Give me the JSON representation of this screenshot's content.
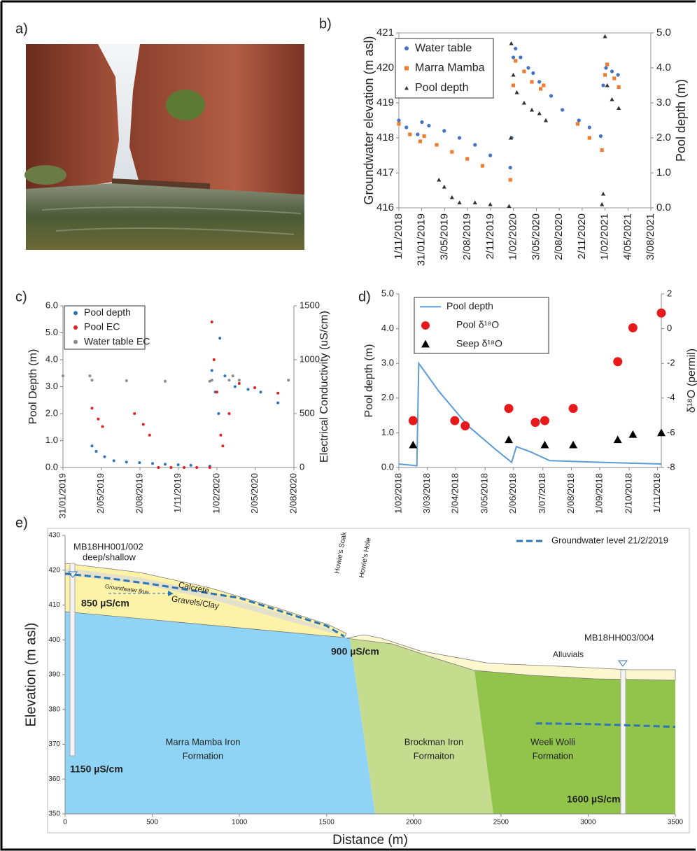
{
  "panel_labels": [
    "a)",
    "b)",
    "c)",
    "d)",
    "e)"
  ],
  "chart_data": [
    {
      "type": "scatter",
      "ylabel": "Groundwater elevation (m asl)",
      "y2label": "Pool depth (m)",
      "xlim": [
        "2018-11-01",
        "2021-08-03"
      ],
      "xticks": [
        {
          "value": "2018-11-01",
          "label": "1/11/2018"
        },
        {
          "value": "2019-01-31",
          "label": "31/01/2019"
        },
        {
          "value": "2019-05-03",
          "label": "3/05/2019"
        },
        {
          "value": "2019-08-02",
          "label": "2/08/2019"
        },
        {
          "value": "2019-11-02",
          "label": "2/11/2019"
        },
        {
          "value": "2020-02-01",
          "label": "1/02/2020"
        },
        {
          "value": "2020-05-03",
          "label": "3/05/2020"
        },
        {
          "value": "2020-08-02",
          "label": "2/08/2020"
        },
        {
          "value": "2020-11-02",
          "label": "2/11/2020"
        },
        {
          "value": "2021-02-01",
          "label": "1/02/2021"
        },
        {
          "value": "2021-05-04",
          "label": "4/05/2021"
        },
        {
          "value": "2021-08-03",
          "label": "3/08/2021"
        }
      ],
      "ylim": [
        416,
        421
      ],
      "yticks": [
        416,
        417,
        418,
        419,
        420,
        421
      ],
      "y2lim": [
        0,
        5
      ],
      "y2ticks": [
        {
          "value": 0,
          "label": "0.0"
        },
        {
          "value": 1,
          "label": "1.0"
        },
        {
          "value": 2,
          "label": "2.0"
        },
        {
          "value": 3,
          "label": "3.0"
        },
        {
          "value": 4,
          "label": "4.0"
        },
        {
          "value": 5,
          "label": "5.0"
        }
      ],
      "legend": "upper left",
      "series": [
        {
          "name": "Water table",
          "color": "#4472c4",
          "marker": "circle",
          "x": [
            "2018-11-01",
            "2018-12-01",
            "2019-01-15",
            "2019-02-01",
            "2019-03-01",
            "2019-05-01",
            "2019-07-01",
            "2019-09-01",
            "2019-11-01",
            "2020-01-20",
            "2020-01-25",
            "2020-02-01",
            "2020-02-10",
            "2020-03-01",
            "2020-04-01",
            "2020-04-20",
            "2020-05-15",
            "2020-07-01",
            "2020-08-15",
            "2020-10-20",
            "2020-12-01",
            "2021-01-15",
            "2021-01-25",
            "2021-02-05",
            "2021-03-01",
            "2021-03-25"
          ],
          "values": [
            418.5,
            418.3,
            418.1,
            418.45,
            418.35,
            418.2,
            418.0,
            417.8,
            417.5,
            417.15,
            418.0,
            420.3,
            420.55,
            420.3,
            420.0,
            419.85,
            419.6,
            419.2,
            418.8,
            418.5,
            418.3,
            418.05,
            419.5,
            420.0,
            419.9,
            419.8
          ]
        },
        {
          "name": "Marra Mamba",
          "color": "#ed7d31",
          "marker": "square",
          "x": [
            "2018-11-01",
            "2018-12-15",
            "2019-01-25",
            "2019-02-10",
            "2019-04-01",
            "2019-06-01",
            "2019-08-01",
            "2019-10-01",
            "2020-01-20",
            "2020-02-01",
            "2020-02-10",
            "2020-03-15",
            "2020-04-15",
            "2020-05-20",
            "2020-06-01",
            "2020-10-15",
            "2020-12-01",
            "2021-01-20",
            "2021-02-01",
            "2021-02-10",
            "2021-03-10",
            "2021-03-28"
          ],
          "values": [
            418.4,
            418.1,
            417.9,
            418.05,
            417.8,
            417.6,
            417.4,
            417.2,
            416.8,
            419.5,
            420.2,
            419.9,
            419.6,
            419.4,
            419.5,
            418.4,
            418.0,
            417.65,
            419.8,
            420.1,
            419.7,
            419.45
          ]
        },
        {
          "name": "Pool depth",
          "color": "#333333",
          "marker": "triangle",
          "axis": "y2",
          "x": [
            "2019-04-10",
            "2019-05-01",
            "2019-06-01",
            "2019-07-01",
            "2019-09-01",
            "2019-11-01",
            "2020-01-15",
            "2020-01-22",
            "2020-01-24",
            "2020-02-01",
            "2020-02-15",
            "2020-03-15",
            "2020-04-15",
            "2020-05-15",
            "2020-06-10",
            "2021-01-20",
            "2021-01-25",
            "2021-02-01",
            "2021-02-10",
            "2021-03-01",
            "2021-03-28"
          ],
          "values": [
            0.8,
            0.6,
            0.3,
            0.15,
            0.15,
            0.1,
            0.05,
            2.0,
            4.7,
            3.8,
            3.3,
            3.0,
            2.8,
            2.7,
            2.5,
            0.1,
            0.4,
            4.9,
            3.5,
            3.1,
            2.85
          ]
        }
      ]
    },
    {
      "type": "scatter",
      "ylabel": "Pool Depth (m)",
      "y2label": "Electrical Conductivity (uS/cm)",
      "xlim": [
        "2019-01-31",
        "2020-08-02"
      ],
      "xticks": [
        {
          "value": "2019-01-31",
          "label": "31/01/2019"
        },
        {
          "value": "2019-05-02",
          "label": "2/05/2019"
        },
        {
          "value": "2019-08-02",
          "label": "2/08/2019"
        },
        {
          "value": "2019-11-01",
          "label": "1/11/2019"
        },
        {
          "value": "2020-02-01",
          "label": "1/02/2020"
        },
        {
          "value": "2020-05-02",
          "label": "2/05/2020"
        },
        {
          "value": "2020-08-02",
          "label": "2/08/2020"
        }
      ],
      "ylim": [
        0,
        6
      ],
      "yticks": [
        {
          "value": 0,
          "label": "0.0"
        },
        {
          "value": 1,
          "label": "1.0"
        },
        {
          "value": 2,
          "label": "2.0"
        },
        {
          "value": 3,
          "label": "3.0"
        },
        {
          "value": 4,
          "label": "4.0"
        },
        {
          "value": 5,
          "label": "5.0"
        },
        {
          "value": 6,
          "label": "6.0"
        }
      ],
      "y2lim": [
        0,
        1500
      ],
      "y2ticks": [
        0,
        500,
        1000,
        1500
      ],
      "legend": "upper left",
      "series": [
        {
          "name": "Pool depth",
          "color": "#2e75b6",
          "marker": "circle",
          "x": [
            "2019-04-10",
            "2019-04-20",
            "2019-05-10",
            "2019-06-01",
            "2019-07-01",
            "2019-08-01",
            "2019-09-01",
            "2019-10-01",
            "2019-11-01",
            "2019-12-01",
            "2020-01-15",
            "2020-01-20",
            "2020-01-28",
            "2020-02-05",
            "2020-02-08",
            "2020-02-20",
            "2020-03-15",
            "2020-04-15",
            "2020-05-15",
            "2020-06-25"
          ],
          "values": [
            0.8,
            0.6,
            0.4,
            0.25,
            0.2,
            0.18,
            0.15,
            0.12,
            0.1,
            0.08,
            0.05,
            3.6,
            2.8,
            2.0,
            4.8,
            3.4,
            3.0,
            2.9,
            2.8,
            2.4
          ]
        },
        {
          "name": "Pool EC",
          "color": "#e02020",
          "marker": "circle",
          "axis": "y2",
          "x": [
            "2019-04-10",
            "2019-04-25",
            "2019-05-05",
            "2019-07-20",
            "2019-08-10",
            "2019-08-25",
            "2019-09-15",
            "2019-10-15",
            "2019-11-15",
            "2019-12-15",
            "2020-01-15",
            "2020-01-20",
            "2020-01-25",
            "2020-02-01",
            "2020-02-10",
            "2020-02-15",
            "2020-03-01",
            "2020-03-25",
            "2020-05-01",
            "2020-06-25"
          ],
          "values": [
            550,
            450,
            380,
            500,
            400,
            300,
            0,
            0,
            0,
            0,
            0,
            1350,
            1000,
            700,
            300,
            200,
            500,
            780,
            740,
            690
          ]
        },
        {
          "name": "Water table EC",
          "color": "#8c8c8c",
          "marker": "circle",
          "axis": "y2",
          "x": [
            "2019-01-31",
            "2019-04-05",
            "2019-04-10",
            "2019-07-01",
            "2019-10-01",
            "2020-01-15",
            "2020-01-20",
            "2020-03-01",
            "2020-03-10",
            "2020-03-25",
            "2020-07-20"
          ],
          "values": [
            850,
            850,
            810,
            805,
            800,
            800,
            810,
            810,
            850,
            810,
            810
          ]
        }
      ]
    },
    {
      "type": "combo",
      "ylabel": "Pool depth (m)",
      "y2label": "δ¹⁸O (permil)",
      "xlim": [
        "2018-02-01",
        "2018-11-05"
      ],
      "xticks": [
        {
          "value": "2018-02-01",
          "label": "1/02/2018"
        },
        {
          "value": "2018-03-03",
          "label": "3/03/2018"
        },
        {
          "value": "2018-04-02",
          "label": "2/04/2018"
        },
        {
          "value": "2018-05-03",
          "label": "3/05/2018"
        },
        {
          "value": "2018-06-02",
          "label": "2/06/2018"
        },
        {
          "value": "2018-07-03",
          "label": "3/07/2018"
        },
        {
          "value": "2018-08-02",
          "label": "2/08/2018"
        },
        {
          "value": "2018-09-01",
          "label": "1/09/2018"
        },
        {
          "value": "2018-10-02",
          "label": "2/10/2018"
        },
        {
          "value": "2018-11-01",
          "label": "1/11/2018"
        }
      ],
      "ylim": [
        0,
        5
      ],
      "yticks": [
        {
          "value": 0,
          "label": "0.0"
        },
        {
          "value": 1,
          "label": "1.0"
        },
        {
          "value": 2,
          "label": "2.0"
        },
        {
          "value": 3,
          "label": "3.0"
        },
        {
          "value": 4,
          "label": "4.0"
        },
        {
          "value": 5,
          "label": "5.0"
        }
      ],
      "y2lim": [
        -8,
        2
      ],
      "y2ticks": [
        -8,
        -6,
        -4,
        -2,
        0,
        2
      ],
      "legend": "upper left",
      "series": [
        {
          "name": "Pool depth",
          "color": "#5b9bd5",
          "type": "line",
          "x": [
            "2018-02-01",
            "2018-02-20",
            "2018-02-22",
            "2018-03-15",
            "2018-04-15",
            "2018-05-15",
            "2018-05-31",
            "2018-06-05",
            "2018-06-20",
            "2018-07-10",
            "2018-09-01",
            "2018-11-05"
          ],
          "values": [
            0.1,
            0.05,
            3.0,
            2.2,
            1.2,
            0.5,
            0.15,
            0.6,
            0.45,
            0.2,
            0.15,
            0.1
          ]
        },
        {
          "name": "Pool  δ¹⁸O",
          "color": "#e8191b",
          "marker": "bigcircle",
          "axis": "y2",
          "x": [
            "2018-02-16",
            "2018-04-01",
            "2018-04-12",
            "2018-05-28",
            "2018-06-25",
            "2018-07-05",
            "2018-08-04",
            "2018-09-20",
            "2018-10-06",
            "2018-11-05"
          ],
          "values": [
            -5.3,
            -5.3,
            -5.6,
            -4.6,
            -5.4,
            -5.3,
            -4.6,
            -1.9,
            0.05,
            0.9
          ]
        },
        {
          "name": "Seep  δ¹⁸O",
          "color": "#000000",
          "marker": "bigtriangle",
          "axis": "y2",
          "x": [
            "2018-02-16",
            "2018-05-28",
            "2018-07-05",
            "2018-08-04",
            "2018-09-20",
            "2018-10-06",
            "2018-11-05"
          ],
          "values": [
            -6.7,
            -6.4,
            -6.7,
            -6.7,
            -6.4,
            -6.1,
            -6.0
          ]
        }
      ]
    },
    {
      "type": "cross-section",
      "ylabel": "Elevation (m asl)",
      "xlabel": "Distance (m)",
      "xlim": [
        0,
        3500
      ],
      "xticks": [
        0,
        500,
        1000,
        1500,
        2000,
        2500,
        3000,
        3500
      ],
      "ylim": [
        350,
        430
      ],
      "yticks": [
        350,
        360,
        370,
        380,
        390,
        400,
        410,
        420,
        430
      ],
      "legend": "upper right",
      "series": [
        {
          "name": "Groundwater level 21/2/2019",
          "color": "#2e75b6",
          "type": "line",
          "dash": true,
          "x": [
            0,
            200,
            500,
            1000,
            1500,
            1600,
            null,
            2700,
            3000,
            3200,
            3500
          ],
          "values": [
            419,
            418,
            416,
            412,
            404,
            401,
            null,
            376,
            375.8,
            375.5,
            375
          ]
        }
      ],
      "annotations": [
        "MB18HH001/002",
        "deep/shallow",
        "Calcrete",
        "Gravels/Clay",
        "Groundwater flow",
        "850 µS/cm",
        "Howie's Soak",
        "Howie's Hole",
        "900 µS/cm",
        "MB18HH003/004",
        "Alluvials",
        "1150 µS/cm",
        "Marra Mamba Iron",
        "Formation",
        "Brockman Iron",
        "Formaiton",
        "Weeli Wolli",
        "Formation",
        "1600 µS/cm"
      ]
    }
  ]
}
